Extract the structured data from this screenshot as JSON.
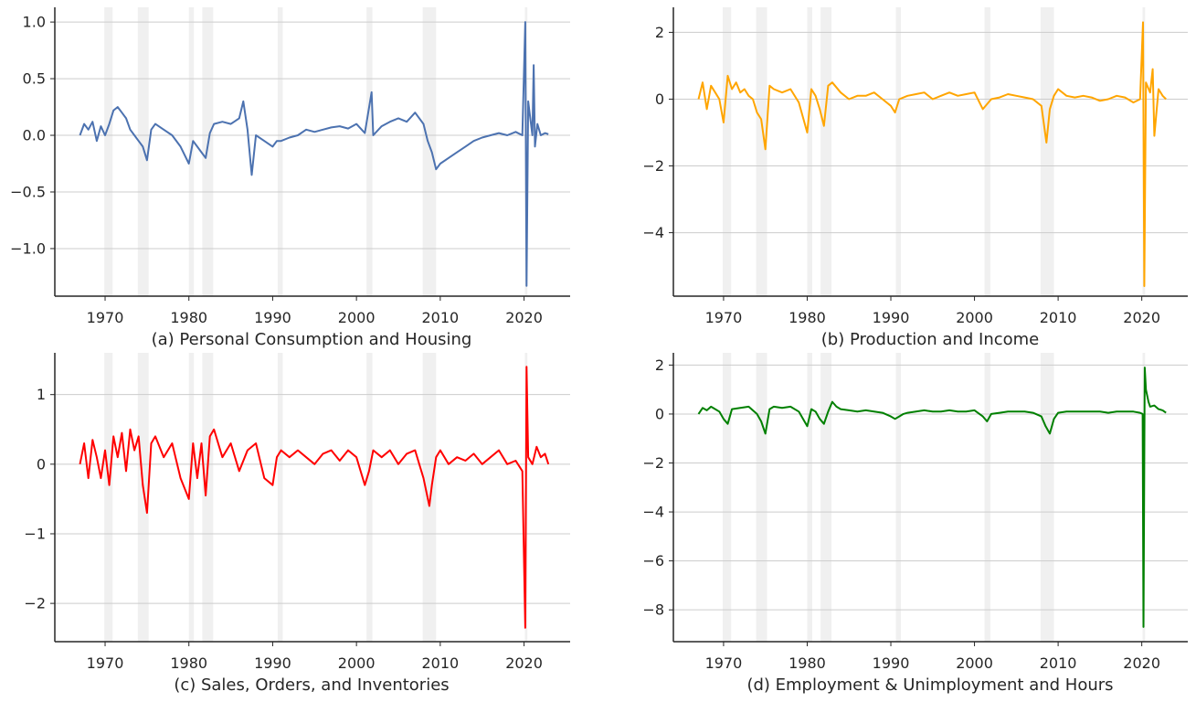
{
  "figure": {
    "recessions": [
      [
        1969.9,
        1970.9
      ],
      [
        1973.9,
        1975.2
      ],
      [
        1980.0,
        1980.6
      ],
      [
        1981.6,
        1982.9
      ],
      [
        1990.6,
        1991.2
      ],
      [
        2001.2,
        2001.9
      ],
      [
        2007.9,
        2009.5
      ],
      [
        2020.1,
        2020.4
      ]
    ]
  },
  "chart_data": [
    {
      "type": "line",
      "caption": "(a) Personal Consumption and Housing",
      "color": "#4c72b0",
      "xlim": [
        1964.0,
        2025.5
      ],
      "ylim": [
        -1.42,
        1.13
      ],
      "xticks": [
        1970,
        1980,
        1990,
        2000,
        2010,
        2020
      ],
      "xtick_labels": [
        "1970",
        "1980",
        "1990",
        "2000",
        "2010",
        "2020"
      ],
      "yticks": [
        1.0,
        0.5,
        0.0,
        -0.5,
        -1.0
      ],
      "ytick_labels": [
        "1.0",
        "0.5",
        "0.0",
        "−0.5",
        "−1.0"
      ],
      "grid": true,
      "series": [
        {
          "x": [
            1967.0,
            1967.5,
            1968.0,
            1968.5,
            1969.0,
            1969.5,
            1970.0,
            1970.5,
            1971.0,
            1971.5,
            1972.0,
            1972.5,
            1973.0,
            1973.5,
            1974.0,
            1974.5,
            1975.0,
            1975.5,
            1976.0,
            1977.0,
            1978.0,
            1979.0,
            1980.0,
            1980.5,
            1981.0,
            1981.5,
            1982.0,
            1982.5,
            1983.0,
            1984.0,
            1985.0,
            1986.0,
            1986.5,
            1987.0,
            1987.5,
            1988.0,
            1989.0,
            1990.0,
            1990.5,
            1991.0,
            1992.0,
            1993.0,
            1994.0,
            1995.0,
            1996.0,
            1997.0,
            1998.0,
            1999.0,
            2000.0,
            2001.0,
            2001.8,
            2002.0,
            2003.0,
            2004.0,
            2005.0,
            2006.0,
            2007.0,
            2008.0,
            2008.5,
            2009.0,
            2009.5,
            2010.0,
            2011.0,
            2012.0,
            2013.0,
            2014.0,
            2015.0,
            2016.0,
            2017.0,
            2018.0,
            2019.0,
            2019.8,
            2020.15,
            2020.3,
            2020.5,
            2021.0,
            2021.15,
            2021.3,
            2021.6,
            2022.0,
            2022.5,
            2022.9
          ],
          "y": [
            0.0,
            0.1,
            0.05,
            0.12,
            -0.05,
            0.08,
            0.0,
            0.1,
            0.22,
            0.25,
            0.2,
            0.15,
            0.05,
            0.0,
            -0.05,
            -0.1,
            -0.22,
            0.05,
            0.1,
            0.05,
            0.0,
            -0.1,
            -0.25,
            -0.05,
            -0.1,
            -0.15,
            -0.2,
            0.02,
            0.1,
            0.12,
            0.1,
            0.15,
            0.3,
            0.05,
            -0.35,
            0.0,
            -0.05,
            -0.1,
            -0.05,
            -0.05,
            -0.02,
            0.0,
            0.05,
            0.03,
            0.05,
            0.07,
            0.08,
            0.06,
            0.1,
            0.02,
            0.38,
            0.0,
            0.08,
            0.12,
            0.15,
            0.12,
            0.2,
            0.1,
            -0.05,
            -0.15,
            -0.3,
            -0.25,
            -0.2,
            -0.15,
            -0.1,
            -0.05,
            -0.02,
            0.0,
            0.02,
            0.0,
            0.03,
            0.0,
            1.0,
            -1.33,
            0.3,
            0.0,
            0.62,
            -0.1,
            0.1,
            0.0,
            0.02,
            0.01
          ]
        }
      ]
    },
    {
      "type": "line",
      "caption": "(b) Production and Income",
      "color": "#ffa500",
      "xlim": [
        1964.0,
        2025.5
      ],
      "ylim": [
        -5.9,
        2.75
      ],
      "xticks": [
        1970,
        1980,
        1990,
        2000,
        2010,
        2020
      ],
      "xtick_labels": [
        "1970",
        "1980",
        "1990",
        "2000",
        "2010",
        "2020"
      ],
      "yticks": [
        2,
        0,
        -2,
        -4
      ],
      "ytick_labels": [
        "2",
        "0",
        "−2",
        "−4"
      ],
      "grid": true,
      "series": [
        {
          "x": [
            1967.0,
            1967.5,
            1968.0,
            1968.5,
            1969.0,
            1969.5,
            1970.0,
            1970.5,
            1971.0,
            1971.5,
            1972.0,
            1972.5,
            1973.0,
            1973.5,
            1974.0,
            1974.5,
            1975.0,
            1975.5,
            1976.0,
            1977.0,
            1978.0,
            1979.0,
            1980.0,
            1980.5,
            1981.0,
            1981.5,
            1982.0,
            1982.5,
            1983.0,
            1984.0,
            1985.0,
            1986.0,
            1987.0,
            1988.0,
            1989.0,
            1990.0,
            1990.5,
            1991.0,
            1992.0,
            1993.0,
            1994.0,
            1995.0,
            1996.0,
            1997.0,
            1998.0,
            1999.0,
            2000.0,
            2001.0,
            2002.0,
            2003.0,
            2004.0,
            2005.0,
            2006.0,
            2007.0,
            2008.0,
            2008.6,
            2009.0,
            2009.5,
            2010.0,
            2011.0,
            2012.0,
            2013.0,
            2014.0,
            2015.0,
            2016.0,
            2017.0,
            2018.0,
            2019.0,
            2019.8,
            2020.15,
            2020.3,
            2020.5,
            2021.0,
            2021.3,
            2021.5,
            2022.0,
            2022.5,
            2022.9
          ],
          "y": [
            0.0,
            0.5,
            -0.3,
            0.4,
            0.2,
            0.0,
            -0.7,
            0.7,
            0.3,
            0.5,
            0.2,
            0.3,
            0.1,
            0.0,
            -0.4,
            -0.6,
            -1.5,
            0.4,
            0.3,
            0.2,
            0.3,
            -0.1,
            -1.0,
            0.3,
            0.1,
            -0.3,
            -0.8,
            0.4,
            0.5,
            0.2,
            0.0,
            0.1,
            0.1,
            0.2,
            0.0,
            -0.2,
            -0.4,
            0.0,
            0.1,
            0.15,
            0.2,
            0.0,
            0.1,
            0.2,
            0.1,
            0.15,
            0.2,
            -0.3,
            0.0,
            0.05,
            0.15,
            0.1,
            0.05,
            0.0,
            -0.2,
            -1.3,
            -0.3,
            0.1,
            0.3,
            0.1,
            0.05,
            0.1,
            0.05,
            -0.05,
            0.0,
            0.1,
            0.05,
            -0.1,
            0.0,
            2.3,
            -5.6,
            0.5,
            0.2,
            0.9,
            -1.1,
            0.3,
            0.1,
            0.0
          ]
        }
      ]
    },
    {
      "type": "line",
      "caption": "(c) Sales, Orders, and Inventories",
      "color": "#ff0000",
      "xlim": [
        1964.0,
        2025.5
      ],
      "ylim": [
        -2.55,
        1.6
      ],
      "xticks": [
        1970,
        1980,
        1990,
        2000,
        2010,
        2020
      ],
      "xtick_labels": [
        "1970",
        "1980",
        "1990",
        "2000",
        "2010",
        "2020"
      ],
      "yticks": [
        1,
        0,
        -1,
        -2
      ],
      "ytick_labels": [
        "1",
        "0",
        "−1",
        "−2"
      ],
      "grid": true,
      "series": [
        {
          "x": [
            1967.0,
            1967.5,
            1968.0,
            1968.5,
            1969.0,
            1969.5,
            1970.0,
            1970.5,
            1971.0,
            1971.5,
            1972.0,
            1972.5,
            1973.0,
            1973.5,
            1974.0,
            1974.5,
            1975.0,
            1975.5,
            1976.0,
            1977.0,
            1978.0,
            1979.0,
            1980.0,
            1980.5,
            1981.0,
            1981.5,
            1982.0,
            1982.5,
            1983.0,
            1984.0,
            1985.0,
            1986.0,
            1987.0,
            1988.0,
            1989.0,
            1990.0,
            1990.5,
            1991.0,
            1992.0,
            1993.0,
            1994.0,
            1995.0,
            1996.0,
            1997.0,
            1998.0,
            1999.0,
            2000.0,
            2001.0,
            2001.5,
            2002.0,
            2003.0,
            2004.0,
            2005.0,
            2006.0,
            2007.0,
            2008.0,
            2008.7,
            2009.0,
            2009.5,
            2010.0,
            2011.0,
            2012.0,
            2013.0,
            2014.0,
            2015.0,
            2016.0,
            2017.0,
            2018.0,
            2019.0,
            2019.8,
            2020.15,
            2020.3,
            2020.5,
            2021.0,
            2021.5,
            2022.0,
            2022.5,
            2022.9
          ],
          "y": [
            0.0,
            0.3,
            -0.2,
            0.35,
            0.1,
            -0.2,
            0.2,
            -0.3,
            0.4,
            0.1,
            0.45,
            -0.1,
            0.5,
            0.2,
            0.4,
            -0.3,
            -0.7,
            0.3,
            0.4,
            0.1,
            0.3,
            -0.2,
            -0.5,
            0.3,
            -0.2,
            0.3,
            -0.45,
            0.4,
            0.5,
            0.1,
            0.3,
            -0.1,
            0.2,
            0.3,
            -0.2,
            -0.3,
            0.1,
            0.2,
            0.1,
            0.2,
            0.1,
            0.0,
            0.15,
            0.2,
            0.05,
            0.2,
            0.1,
            -0.3,
            -0.1,
            0.2,
            0.1,
            0.2,
            0.0,
            0.15,
            0.2,
            -0.2,
            -0.6,
            -0.3,
            0.1,
            0.2,
            0.0,
            0.1,
            0.05,
            0.15,
            0.0,
            0.1,
            0.2,
            0.0,
            0.05,
            -0.1,
            -2.35,
            1.4,
            0.1,
            0.0,
            0.25,
            0.1,
            0.15,
            0.0
          ]
        }
      ]
    },
    {
      "type": "line",
      "caption": "(d) Employment & Unimployment and Hours",
      "color": "#008000",
      "xlim": [
        1964.0,
        2025.5
      ],
      "ylim": [
        -9.3,
        2.5
      ],
      "xticks": [
        1970,
        1980,
        1990,
        2000,
        2010,
        2020
      ],
      "xtick_labels": [
        "1970",
        "1980",
        "1990",
        "2000",
        "2010",
        "2020"
      ],
      "yticks": [
        2,
        0,
        -2,
        -4,
        -6,
        -8
      ],
      "ytick_labels": [
        "2",
        "0",
        "−2",
        "−4",
        "−6",
        "−8"
      ],
      "grid": true,
      "series": [
        {
          "x": [
            1967.0,
            1967.5,
            1968.0,
            1968.5,
            1969.0,
            1969.5,
            1970.0,
            1970.5,
            1971.0,
            1972.0,
            1973.0,
            1974.0,
            1974.5,
            1975.0,
            1975.5,
            1976.0,
            1977.0,
            1978.0,
            1979.0,
            1980.0,
            1980.5,
            1981.0,
            1981.5,
            1982.0,
            1982.5,
            1983.0,
            1983.5,
            1984.0,
            1985.0,
            1986.0,
            1987.0,
            1988.0,
            1989.0,
            1990.0,
            1990.5,
            1991.0,
            1991.5,
            1992.0,
            1993.0,
            1994.0,
            1995.0,
            1996.0,
            1997.0,
            1998.0,
            1999.0,
            2000.0,
            2001.0,
            2001.5,
            2002.0,
            2003.0,
            2004.0,
            2005.0,
            2006.0,
            2007.0,
            2008.0,
            2008.5,
            2009.0,
            2009.5,
            2010.0,
            2011.0,
            2012.0,
            2013.0,
            2014.0,
            2015.0,
            2016.0,
            2017.0,
            2018.0,
            2019.0,
            2019.8,
            2020.1,
            2020.2,
            2020.35,
            2020.5,
            2020.8,
            2021.0,
            2021.5,
            2022.0,
            2022.5,
            2022.9
          ],
          "y": [
            0.0,
            0.25,
            0.15,
            0.3,
            0.2,
            0.1,
            -0.2,
            -0.4,
            0.2,
            0.25,
            0.3,
            0.0,
            -0.3,
            -0.8,
            0.2,
            0.3,
            0.25,
            0.3,
            0.1,
            -0.5,
            0.2,
            0.1,
            -0.2,
            -0.4,
            0.1,
            0.5,
            0.3,
            0.2,
            0.15,
            0.1,
            0.15,
            0.1,
            0.05,
            -0.1,
            -0.2,
            -0.1,
            0.0,
            0.05,
            0.1,
            0.15,
            0.1,
            0.1,
            0.15,
            0.1,
            0.1,
            0.15,
            -0.1,
            -0.3,
            0.0,
            0.05,
            0.1,
            0.1,
            0.1,
            0.05,
            -0.1,
            -0.5,
            -0.8,
            -0.2,
            0.05,
            0.1,
            0.1,
            0.1,
            0.1,
            0.1,
            0.05,
            0.1,
            0.1,
            0.1,
            0.05,
            0.0,
            -8.7,
            1.9,
            1.0,
            0.5,
            0.3,
            0.35,
            0.2,
            0.15,
            0.05
          ]
        }
      ]
    }
  ]
}
